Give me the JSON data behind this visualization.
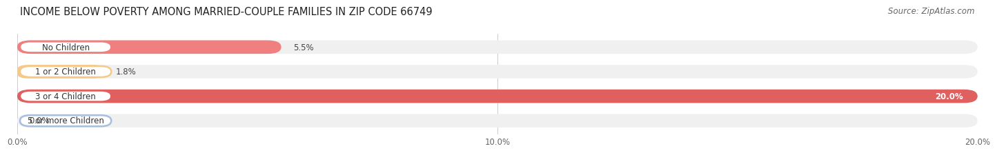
{
  "title": "INCOME BELOW POVERTY AMONG MARRIED-COUPLE FAMILIES IN ZIP CODE 66749",
  "source": "Source: ZipAtlas.com",
  "categories": [
    "No Children",
    "1 or 2 Children",
    "3 or 4 Children",
    "5 or more Children"
  ],
  "values": [
    5.5,
    1.8,
    20.0,
    0.0
  ],
  "bar_colors": [
    "#f08080",
    "#f5c98a",
    "#e06060",
    "#a8bede"
  ],
  "bar_bg_color": "#f0f0f0",
  "xlim_max": 20.0,
  "xticks": [
    0.0,
    10.0,
    20.0
  ],
  "xtick_labels": [
    "0.0%",
    "10.0%",
    "20.0%"
  ],
  "title_fontsize": 10.5,
  "source_fontsize": 8.5,
  "tick_fontsize": 8.5,
  "cat_fontsize": 8.5,
  "val_fontsize": 8.5
}
